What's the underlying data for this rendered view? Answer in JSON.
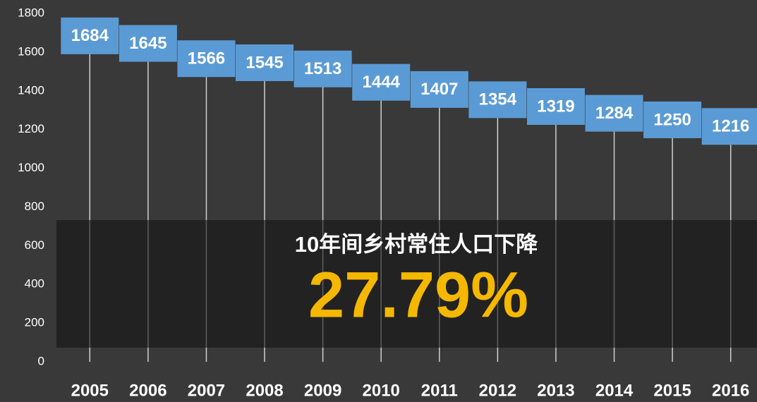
{
  "chart_data": {
    "type": "lollipop",
    "categories": [
      "2005",
      "2006",
      "2007",
      "2008",
      "2009",
      "2010",
      "2011",
      "2012",
      "2013",
      "2014",
      "2015",
      "2016"
    ],
    "values": [
      1684,
      1645,
      1566,
      1545,
      1513,
      1444,
      1407,
      1354,
      1319,
      1284,
      1250,
      1216
    ],
    "color": "#5b9bd5",
    "ylim": [
      0,
      1800
    ],
    "yticks": [
      0,
      200,
      400,
      600,
      800,
      1000,
      1200,
      1400,
      1600,
      1800
    ],
    "grid": false,
    "annotation": "10年间乡村常住人口下降",
    "highlight": "27.79%"
  }
}
